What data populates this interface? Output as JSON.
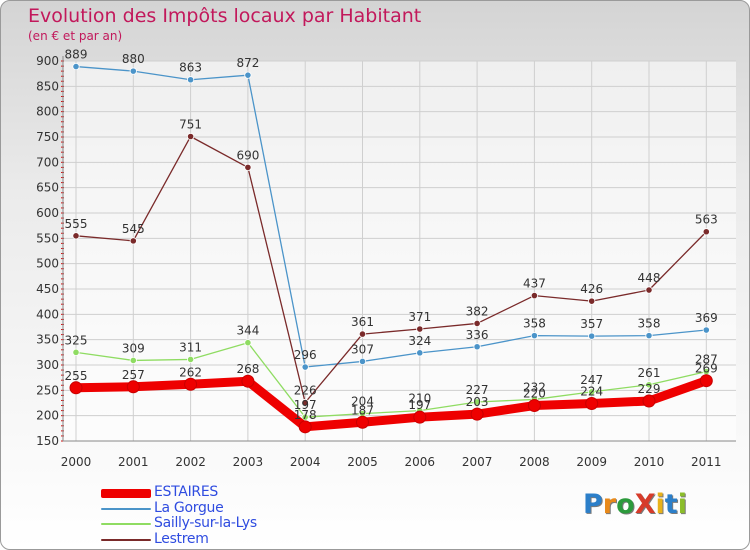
{
  "title": "Evolution des Impôts locaux par Habitant",
  "subtitle": "(en € et par an)",
  "logo_text": "ProXiti",
  "chart_data": {
    "type": "line",
    "categories": [
      "2000",
      "2001",
      "2002",
      "2003",
      "2004",
      "2005",
      "2006",
      "2007",
      "2008",
      "2009",
      "2010",
      "2011"
    ],
    "ylim": [
      150,
      900
    ],
    "yticks": [
      150,
      200,
      250,
      300,
      350,
      400,
      450,
      500,
      550,
      600,
      650,
      700,
      750,
      800,
      850,
      900
    ],
    "xlabel": "",
    "ylabel": "",
    "series": [
      {
        "name": "ESTAIRES",
        "color": "#ee0000",
        "values": [
          255,
          257,
          262,
          268,
          178,
          187,
          197,
          203,
          220,
          224,
          229,
          269
        ],
        "labels": [
          "255",
          "257",
          "262",
          "268",
          "178",
          "187",
          "197",
          "203",
          "220",
          "224",
          "229",
          "269"
        ]
      },
      {
        "name": "La Gorgue",
        "color": "#4b94c9",
        "values": [
          889,
          880,
          863,
          872,
          296,
          307,
          324,
          336,
          358,
          357,
          358,
          369
        ],
        "labels": [
          "889",
          "880",
          "863",
          "872",
          "296",
          "307",
          "324",
          "336",
          "358",
          "357",
          "358",
          "369"
        ]
      },
      {
        "name": "Sailly-sur-la-Lys",
        "color": "#8fdc62",
        "values": [
          325,
          309,
          311,
          344,
          197,
          204,
          210,
          227,
          232,
          247,
          261,
          287
        ],
        "labels": [
          "325",
          "309",
          "311",
          "344",
          "197",
          "204",
          "210",
          "227",
          "232",
          "247",
          "261",
          "287"
        ]
      },
      {
        "name": "Lestrem",
        "color": "#7a2a2a",
        "values": [
          555,
          545,
          751,
          690,
          226,
          361,
          371,
          382,
          437,
          426,
          448,
          563
        ],
        "labels": [
          "555",
          "545",
          "751",
          "690",
          "226",
          "361",
          "371",
          "382",
          "437",
          "426",
          "448",
          "563"
        ]
      }
    ]
  }
}
